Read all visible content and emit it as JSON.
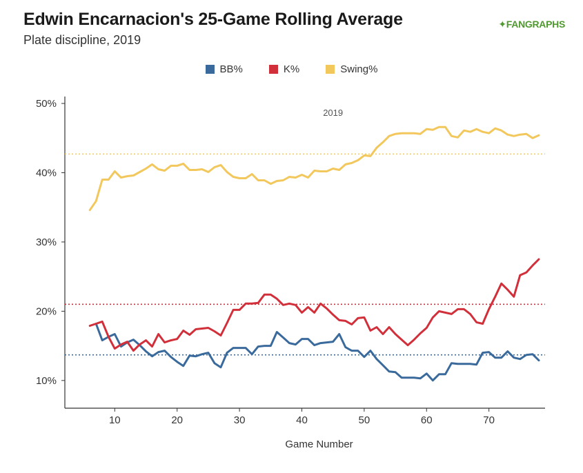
{
  "header": {
    "title": "Edwin Encarnacion's 25-Game Rolling Average",
    "subtitle": "Plate discipline, 2019",
    "logo_part1": "FAN",
    "logo_part2": "GRAPHS"
  },
  "chart_data": {
    "type": "line",
    "title": "Edwin Encarnacion's 25-Game Rolling Average",
    "subtitle": "Plate discipline, 2019",
    "xlabel": "Game Number",
    "ylabel": "",
    "panel_label": "2019",
    "xlim": [
      2,
      79
    ],
    "ylim": [
      6,
      51
    ],
    "x_ticks": [
      10,
      20,
      30,
      40,
      50,
      60,
      70
    ],
    "y_ticks": [
      10,
      20,
      30,
      40,
      50
    ],
    "y_tick_labels": [
      "10%",
      "20%",
      "30%",
      "40%",
      "50%"
    ],
    "legend_position": "top-center",
    "grid": false,
    "series": [
      {
        "name": "BB%",
        "color": "#3a6a9b",
        "reference_line": 13.7,
        "points": [
          [
            7,
            18.2
          ],
          [
            8,
            15.8
          ],
          [
            9,
            16.3
          ],
          [
            10,
            16.7
          ],
          [
            11,
            14.9
          ],
          [
            12,
            15.5
          ],
          [
            13,
            15.9
          ],
          [
            14,
            15.1
          ],
          [
            15,
            14.2
          ],
          [
            16,
            13.5
          ],
          [
            17,
            14.1
          ],
          [
            18,
            14.3
          ],
          [
            19,
            13.4
          ],
          [
            20,
            12.7
          ],
          [
            21,
            12.1
          ],
          [
            22,
            13.6
          ],
          [
            23,
            13.5
          ],
          [
            24,
            13.8
          ],
          [
            25,
            14.0
          ],
          [
            26,
            12.5
          ],
          [
            27,
            11.9
          ],
          [
            28,
            14.0
          ],
          [
            29,
            14.7
          ],
          [
            30,
            14.7
          ],
          [
            31,
            14.7
          ],
          [
            32,
            13.8
          ],
          [
            33,
            14.9
          ],
          [
            34,
            15.0
          ],
          [
            35,
            15.0
          ],
          [
            36,
            17.0
          ],
          [
            37,
            16.2
          ],
          [
            38,
            15.4
          ],
          [
            39,
            15.2
          ],
          [
            40,
            16.0
          ],
          [
            41,
            16.0
          ],
          [
            42,
            15.1
          ],
          [
            43,
            15.4
          ],
          [
            44,
            15.5
          ],
          [
            45,
            15.6
          ],
          [
            46,
            16.7
          ],
          [
            47,
            14.8
          ],
          [
            48,
            14.3
          ],
          [
            49,
            14.3
          ],
          [
            50,
            13.4
          ],
          [
            51,
            14.3
          ],
          [
            52,
            13.1
          ],
          [
            53,
            12.2
          ],
          [
            54,
            11.3
          ],
          [
            55,
            11.2
          ],
          [
            56,
            10.4
          ],
          [
            57,
            10.4
          ],
          [
            58,
            10.4
          ],
          [
            59,
            10.3
          ],
          [
            60,
            11.0
          ],
          [
            61,
            10.0
          ],
          [
            62,
            10.9
          ],
          [
            63,
            10.9
          ],
          [
            64,
            12.5
          ],
          [
            65,
            12.4
          ],
          [
            66,
            12.4
          ],
          [
            67,
            12.4
          ],
          [
            68,
            12.3
          ],
          [
            69,
            14.0
          ],
          [
            70,
            14.1
          ],
          [
            71,
            13.3
          ],
          [
            72,
            13.3
          ],
          [
            73,
            14.2
          ],
          [
            74,
            13.3
          ],
          [
            75,
            13.1
          ],
          [
            76,
            13.7
          ],
          [
            77,
            13.8
          ],
          [
            78,
            12.9
          ]
        ]
      },
      {
        "name": "K%",
        "color": "#d12f3a",
        "reference_line": 21.0,
        "points": [
          [
            6,
            17.9
          ],
          [
            7,
            18.2
          ],
          [
            8,
            18.5
          ],
          [
            9,
            16.3
          ],
          [
            10,
            14.6
          ],
          [
            11,
            15.2
          ],
          [
            12,
            15.6
          ],
          [
            13,
            14.3
          ],
          [
            14,
            15.2
          ],
          [
            15,
            15.8
          ],
          [
            16,
            14.9
          ],
          [
            17,
            16.7
          ],
          [
            18,
            15.5
          ],
          [
            19,
            15.8
          ],
          [
            20,
            16.0
          ],
          [
            21,
            17.2
          ],
          [
            22,
            16.6
          ],
          [
            23,
            17.4
          ],
          [
            24,
            17.5
          ],
          [
            25,
            17.6
          ],
          [
            26,
            17.1
          ],
          [
            27,
            16.5
          ],
          [
            28,
            18.3
          ],
          [
            29,
            20.2
          ],
          [
            30,
            20.2
          ],
          [
            31,
            21.1
          ],
          [
            32,
            21.1
          ],
          [
            33,
            21.2
          ],
          [
            34,
            22.4
          ],
          [
            35,
            22.4
          ],
          [
            36,
            21.8
          ],
          [
            37,
            20.9
          ],
          [
            38,
            21.1
          ],
          [
            39,
            20.9
          ],
          [
            40,
            19.8
          ],
          [
            41,
            20.6
          ],
          [
            42,
            19.8
          ],
          [
            43,
            21.1
          ],
          [
            44,
            20.4
          ],
          [
            45,
            19.5
          ],
          [
            46,
            18.7
          ],
          [
            47,
            18.6
          ],
          [
            48,
            18.1
          ],
          [
            49,
            19.0
          ],
          [
            50,
            19.1
          ],
          [
            51,
            17.2
          ],
          [
            52,
            17.7
          ],
          [
            53,
            16.7
          ],
          [
            54,
            17.7
          ],
          [
            55,
            16.7
          ],
          [
            56,
            15.9
          ],
          [
            57,
            15.1
          ],
          [
            58,
            15.9
          ],
          [
            59,
            16.8
          ],
          [
            60,
            17.6
          ],
          [
            61,
            19.1
          ],
          [
            62,
            20.0
          ],
          [
            63,
            19.8
          ],
          [
            64,
            19.6
          ],
          [
            65,
            20.3
          ],
          [
            66,
            20.3
          ],
          [
            67,
            19.6
          ],
          [
            68,
            18.4
          ],
          [
            69,
            18.2
          ],
          [
            70,
            20.3
          ],
          [
            71,
            22.1
          ],
          [
            72,
            24.0
          ],
          [
            73,
            23.1
          ],
          [
            74,
            22.1
          ],
          [
            75,
            25.2
          ],
          [
            76,
            25.6
          ],
          [
            77,
            26.6
          ],
          [
            78,
            27.5
          ]
        ]
      },
      {
        "name": "Swing%",
        "color": "#f2c75c",
        "reference_line": 42.7,
        "points": [
          [
            6,
            34.6
          ],
          [
            7,
            35.9
          ],
          [
            8,
            39.0
          ],
          [
            9,
            39.0
          ],
          [
            10,
            40.2
          ],
          [
            11,
            39.3
          ],
          [
            12,
            39.5
          ],
          [
            13,
            39.6
          ],
          [
            14,
            40.1
          ],
          [
            15,
            40.6
          ],
          [
            16,
            41.2
          ],
          [
            17,
            40.5
          ],
          [
            18,
            40.3
          ],
          [
            19,
            41.0
          ],
          [
            20,
            41.0
          ],
          [
            21,
            41.3
          ],
          [
            22,
            40.4
          ],
          [
            23,
            40.4
          ],
          [
            24,
            40.5
          ],
          [
            25,
            40.1
          ],
          [
            26,
            40.8
          ],
          [
            27,
            41.1
          ],
          [
            28,
            40.1
          ],
          [
            29,
            39.4
          ],
          [
            30,
            39.2
          ],
          [
            31,
            39.2
          ],
          [
            32,
            39.8
          ],
          [
            33,
            38.9
          ],
          [
            34,
            38.9
          ],
          [
            35,
            38.4
          ],
          [
            36,
            38.8
          ],
          [
            37,
            38.9
          ],
          [
            38,
            39.4
          ],
          [
            39,
            39.3
          ],
          [
            40,
            39.7
          ],
          [
            41,
            39.3
          ],
          [
            42,
            40.3
          ],
          [
            43,
            40.2
          ],
          [
            44,
            40.2
          ],
          [
            45,
            40.6
          ],
          [
            46,
            40.4
          ],
          [
            47,
            41.2
          ],
          [
            48,
            41.4
          ],
          [
            49,
            41.8
          ],
          [
            50,
            42.5
          ],
          [
            51,
            42.4
          ],
          [
            52,
            43.6
          ],
          [
            53,
            44.4
          ],
          [
            54,
            45.3
          ],
          [
            55,
            45.6
          ],
          [
            56,
            45.7
          ],
          [
            57,
            45.7
          ],
          [
            58,
            45.7
          ],
          [
            59,
            45.6
          ],
          [
            60,
            46.3
          ],
          [
            61,
            46.2
          ],
          [
            62,
            46.6
          ],
          [
            63,
            46.6
          ],
          [
            64,
            45.3
          ],
          [
            65,
            45.1
          ],
          [
            66,
            46.1
          ],
          [
            67,
            45.9
          ],
          [
            68,
            46.3
          ],
          [
            69,
            45.9
          ],
          [
            70,
            45.7
          ],
          [
            71,
            46.4
          ],
          [
            72,
            46.1
          ],
          [
            73,
            45.5
          ],
          [
            74,
            45.3
          ],
          [
            75,
            45.5
          ],
          [
            76,
            45.6
          ],
          [
            77,
            45.0
          ],
          [
            78,
            45.4
          ]
        ]
      }
    ]
  }
}
